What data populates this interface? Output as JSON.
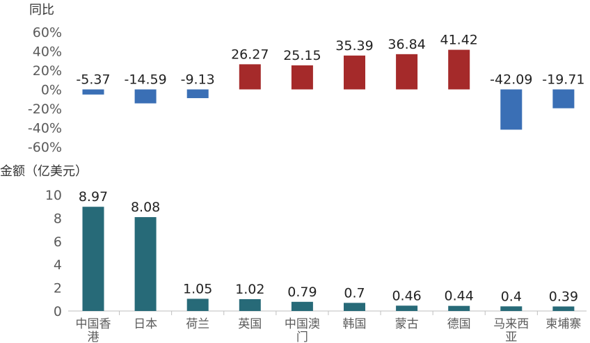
{
  "chart_data": [
    {
      "type": "bar",
      "title": "",
      "ylabel": "同比",
      "ylim": [
        -60,
        60
      ],
      "yticks": [
        "60%",
        "40%",
        "20%",
        "0%",
        "-20%",
        "-40%",
        "-60%"
      ],
      "categories": [
        "中国香港",
        "日本",
        "荷兰",
        "英国",
        "中国澳门",
        "韩国",
        "蒙古",
        "德国",
        "马来西亚",
        "柬埔寨"
      ],
      "values": [
        -5.37,
        -14.59,
        -9.13,
        26.27,
        25.15,
        35.39,
        36.84,
        41.42,
        -42.09,
        -19.71
      ],
      "data_labels": [
        "-5.37",
        "-14.59",
        "-9.13",
        "26.27",
        "25.15",
        "35.39",
        "36.84",
        "41.42",
        "-42.09",
        "-19.71"
      ],
      "colors": {
        "positive": "#A52A2A",
        "negative": "#3A6FB5"
      },
      "grid": false
    },
    {
      "type": "bar",
      "title": "",
      "ylabel": "金额（亿美元）",
      "ylim": [
        0,
        10
      ],
      "yticks": [
        "10",
        "8",
        "6",
        "4",
        "2",
        "0"
      ],
      "categories": [
        "中国香港",
        "日本",
        "荷兰",
        "英国",
        "中国澳门",
        "韩国",
        "蒙古",
        "德国",
        "马来西亚",
        "柬埔寨"
      ],
      "category_lines": [
        [
          "中国香",
          "港"
        ],
        [
          "日本"
        ],
        [
          "荷兰"
        ],
        [
          "英国"
        ],
        [
          "中国澳",
          "门"
        ],
        [
          "韩国"
        ],
        [
          "蒙古"
        ],
        [
          "德国"
        ],
        [
          "马来西",
          "亚"
        ],
        [
          "柬埔寨"
        ]
      ],
      "values": [
        8.97,
        8.08,
        1.05,
        1.02,
        0.79,
        0.7,
        0.46,
        0.44,
        0.4,
        0.39
      ],
      "data_labels": [
        "8.97",
        "8.08",
        "1.05",
        "1.02",
        "0.79",
        "0.7",
        "0.46",
        "0.44",
        "0.4",
        "0.39"
      ],
      "colors": {
        "bar": "#276A78",
        "axis": "#BFBFBF"
      },
      "grid": false
    }
  ]
}
